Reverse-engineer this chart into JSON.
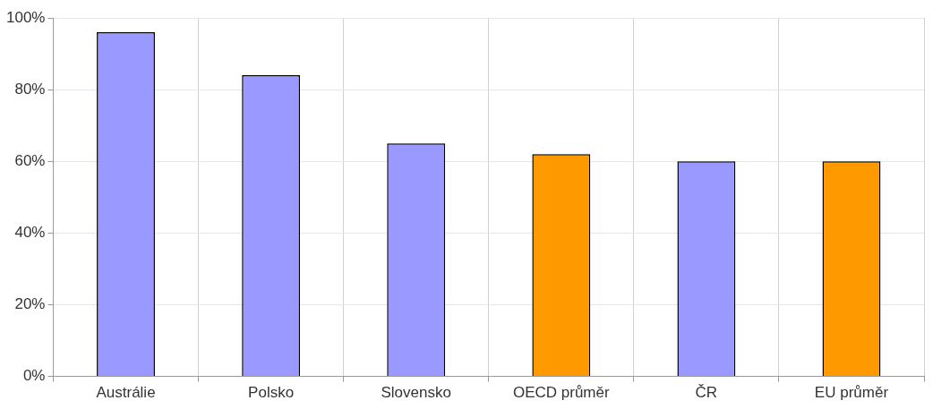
{
  "chart_data": {
    "type": "bar",
    "categories": [
      "Austrálie",
      "Polsko",
      "Slovensko",
      "OECD průměr",
      "ČR",
      "EU průměr"
    ],
    "values": [
      96,
      84,
      65,
      62,
      60,
      60
    ],
    "colors": [
      "#9999ff",
      "#9999ff",
      "#9999ff",
      "#ff9900",
      "#9999ff",
      "#ff9900"
    ],
    "ylim": [
      0,
      100
    ],
    "yticks": [
      {
        "value": 0,
        "label": "0%"
      },
      {
        "value": 20,
        "label": "20%"
      },
      {
        "value": 40,
        "label": "40%"
      },
      {
        "value": 60,
        "label": "60%"
      },
      {
        "value": 80,
        "label": "80%"
      },
      {
        "value": 100,
        "label": "100%"
      }
    ],
    "grid": true
  }
}
